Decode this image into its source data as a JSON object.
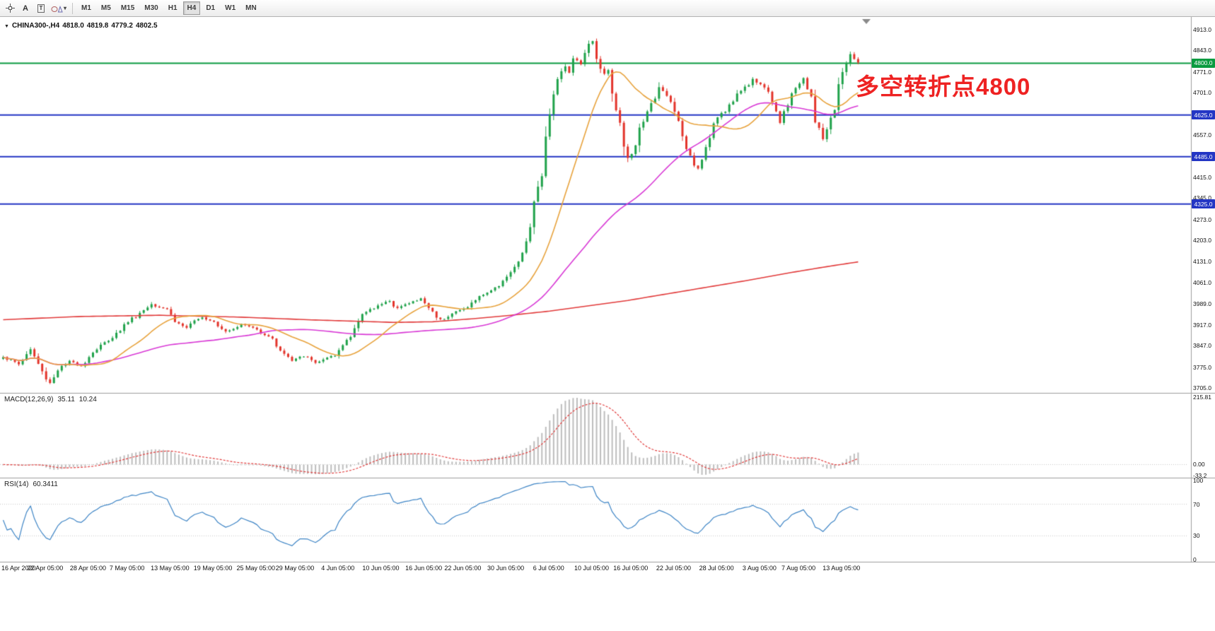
{
  "toolbar": {
    "text_tool_label": "A",
    "textbox_tool_label": "T",
    "timeframes": [
      "M1",
      "M5",
      "M15",
      "M30",
      "H1",
      "H4",
      "D1",
      "W1",
      "MN"
    ],
    "active_timeframe": "H4"
  },
  "chart": {
    "symbol_header": {
      "expander": "▼",
      "symbol": "CHINA300-,H4",
      "open": "4818.0",
      "high": "4819.8",
      "low": "4779.2",
      "close": "4802.5"
    },
    "annotation": {
      "text": "多空转折点4800",
      "color": "#ee2222"
    },
    "levels": [
      {
        "label": "4800.0",
        "value": 4800,
        "color": "#0a9b40"
      },
      {
        "label": "4625.0",
        "value": 4625,
        "color": "#2336c4"
      },
      {
        "label": "4485.0",
        "value": 4485,
        "color": "#2336c4"
      },
      {
        "label": "4325.0",
        "value": 4325,
        "color": "#2336c4"
      }
    ],
    "price_ticks": [
      4913,
      4843,
      4771,
      4701,
      4631,
      4557,
      4487,
      4415,
      4345,
      4273,
      4203,
      4131,
      4061,
      3989,
      3917,
      3847,
      3775,
      3705
    ],
    "time_labels": [
      "16 Apr 2020",
      "22 Apr 05:00",
      "28 Apr 05:00",
      "7 May 05:00",
      "13 May 05:00",
      "19 May 05:00",
      "25 May 05:00",
      "29 May 05:00",
      "4 Jun 05:00",
      "10 Jun 05:00",
      "16 Jun 05:00",
      "22 Jun 05:00",
      "30 Jun 05:00",
      "6 Jul 05:00",
      "10 Jul 05:00",
      "16 Jul 05:00",
      "22 Jul 05:00",
      "28 Jul 05:00",
      "3 Aug 05:00",
      "7 Aug 05:00",
      "13 Aug 05:00"
    ],
    "macd": {
      "header": "MACD(12,26,9)",
      "value_main": "35.11",
      "value_signal": "10.24",
      "ticks": [
        "215.81",
        "0.00",
        "-33.2"
      ]
    },
    "rsi": {
      "header": "RSI(14)",
      "value": "60.3411",
      "ticks": [
        "100",
        "70",
        "30",
        "0"
      ]
    },
    "colors": {
      "up": "#1fa24a",
      "down": "#e3342b",
      "ma_fast": "#e8a33d",
      "ma_mid": "#d93ad6",
      "ma_slow": "#e23b3b",
      "macd_hist": "#bdbdbd",
      "macd_signal": "#e23b3b",
      "rsi": "#3e85c6",
      "level_blue": "#2336c4",
      "level_green": "#0a9b40",
      "separator": "#9e9e9e",
      "grid_dot": "#c8c8c8"
    }
  },
  "chart_data": {
    "type": "candlestick",
    "symbol": "CHINA300-",
    "timeframe": "H4",
    "ohlc_current": {
      "open": 4818.0,
      "high": 4819.8,
      "low": 4779.2,
      "close": 4802.5
    },
    "bars": 220,
    "y_axis": {
      "min": 3705,
      "max": 4913
    },
    "x_axis_labels": [
      "16 Apr 2020",
      "22 Apr 05:00",
      "28 Apr 05:00",
      "7 May 05:00",
      "13 May 05:00",
      "19 May 05:00",
      "25 May 05:00",
      "29 May 05:00",
      "4 Jun 05:00",
      "10 Jun 05:00",
      "16 Jun 05:00",
      "22 Jun 05:00",
      "30 Jun 05:00",
      "6 Jul 05:00",
      "10 Jul 05:00",
      "16 Jul 05:00",
      "22 Jul 05:00",
      "28 Jul 05:00",
      "3 Aug 05:00",
      "7 Aug 05:00",
      "13 Aug 05:00"
    ],
    "close_anchors": [
      [
        0,
        3810
      ],
      [
        4,
        3785
      ],
      [
        7,
        3835
      ],
      [
        10,
        3760
      ],
      [
        12,
        3722
      ],
      [
        14,
        3765
      ],
      [
        17,
        3795
      ],
      [
        20,
        3780
      ],
      [
        23,
        3825
      ],
      [
        26,
        3858
      ],
      [
        29,
        3890
      ],
      [
        32,
        3928
      ],
      [
        35,
        3958
      ],
      [
        38,
        3988
      ],
      [
        42,
        3972
      ],
      [
        44,
        3928
      ],
      [
        47,
        3908
      ],
      [
        51,
        3944
      ],
      [
        54,
        3930
      ],
      [
        57,
        3896
      ],
      [
        61,
        3920
      ],
      [
        64,
        3908
      ],
      [
        68,
        3880
      ],
      [
        72,
        3820
      ],
      [
        74,
        3796
      ],
      [
        77,
        3812
      ],
      [
        80,
        3790
      ],
      [
        82,
        3800
      ],
      [
        85,
        3812
      ],
      [
        88,
        3868
      ],
      [
        91,
        3930
      ],
      [
        93,
        3962
      ],
      [
        96,
        3984
      ],
      [
        99,
        3996
      ],
      [
        101,
        3976
      ],
      [
        104,
        3990
      ],
      [
        107,
        4006
      ],
      [
        110,
        3962
      ],
      [
        112,
        3936
      ],
      [
        115,
        3956
      ],
      [
        118,
        3972
      ],
      [
        120,
        3992
      ],
      [
        123,
        4020
      ],
      [
        126,
        4042
      ],
      [
        128,
        4068
      ],
      [
        130,
        4094
      ],
      [
        131,
        4110
      ],
      [
        133,
        4158
      ],
      [
        135,
        4248
      ],
      [
        136,
        4330
      ],
      [
        138,
        4420
      ],
      [
        139,
        4556
      ],
      [
        141,
        4698
      ],
      [
        142,
        4748
      ],
      [
        144,
        4788
      ],
      [
        145,
        4768
      ],
      [
        146,
        4818
      ],
      [
        148,
        4798
      ],
      [
        149,
        4838
      ],
      [
        151,
        4878
      ],
      [
        152,
        4812
      ],
      [
        154,
        4762
      ],
      [
        155,
        4780
      ],
      [
        156,
        4700
      ],
      [
        158,
        4598
      ],
      [
        159,
        4520
      ],
      [
        160,
        4478
      ],
      [
        162,
        4520
      ],
      [
        163,
        4580
      ],
      [
        165,
        4640
      ],
      [
        167,
        4678
      ],
      [
        168,
        4718
      ],
      [
        170,
        4690
      ],
      [
        172,
        4640
      ],
      [
        174,
        4550
      ],
      [
        176,
        4490
      ],
      [
        178,
        4445
      ],
      [
        179,
        4478
      ],
      [
        181,
        4548
      ],
      [
        183,
        4618
      ],
      [
        186,
        4658
      ],
      [
        188,
        4698
      ],
      [
        190,
        4720
      ],
      [
        192,
        4748
      ],
      [
        194,
        4730
      ],
      [
        196,
        4700
      ],
      [
        198,
        4640
      ],
      [
        199,
        4600
      ],
      [
        201,
        4658
      ],
      [
        203,
        4718
      ],
      [
        205,
        4748
      ],
      [
        207,
        4688
      ],
      [
        208,
        4600
      ],
      [
        210,
        4545
      ],
      [
        211,
        4578
      ],
      [
        213,
        4638
      ],
      [
        214,
        4728
      ],
      [
        216,
        4798
      ],
      [
        217,
        4832
      ],
      [
        219,
        4802.5
      ]
    ],
    "moving_averages": [
      {
        "name": "fast",
        "color": "#e8a33d",
        "period": 18
      },
      {
        "name": "medium",
        "color": "#d93ad6",
        "period": 55
      },
      {
        "name": "slow",
        "color": "#e23b3b",
        "anchors": [
          [
            0,
            3935
          ],
          [
            20,
            3946
          ],
          [
            40,
            3950
          ],
          [
            60,
            3944
          ],
          [
            80,
            3934
          ],
          [
            100,
            3926
          ],
          [
            110,
            3928
          ],
          [
            120,
            3938
          ],
          [
            130,
            3950
          ],
          [
            140,
            3964
          ],
          [
            150,
            3982
          ],
          [
            160,
            4000
          ],
          [
            170,
            4022
          ],
          [
            180,
            4044
          ],
          [
            190,
            4066
          ],
          [
            200,
            4090
          ],
          [
            210,
            4112
          ],
          [
            219,
            4130
          ]
        ]
      }
    ],
    "horizontal_lines": [
      4800,
      4625,
      4485,
      4325
    ],
    "indicators": [
      {
        "name": "MACD",
        "params": [
          12,
          26,
          9
        ],
        "current_values": [
          35.11,
          10.24
        ],
        "range": [
          -33.2,
          215.81
        ]
      },
      {
        "name": "RSI",
        "params": [
          14
        ],
        "current_value": 60.3411,
        "levels": [
          30,
          70
        ],
        "range": [
          0,
          100
        ]
      }
    ]
  }
}
